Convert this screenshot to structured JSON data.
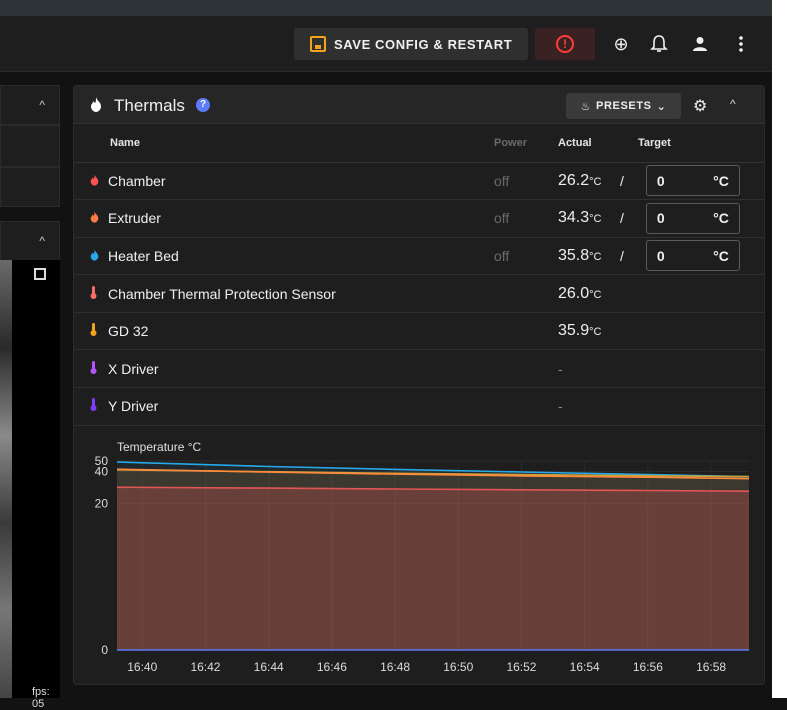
{
  "appbar": {
    "save_label": "SAVE CONFIG & RESTART",
    "icons": [
      "emergency-stop-icon",
      "upload-icon",
      "bell-icon",
      "account-icon",
      "more-vert-icon"
    ]
  },
  "camera": {
    "fps_label": "fps: 05"
  },
  "thermals": {
    "title": "Thermals",
    "presets_label": "PRESETS",
    "columns": {
      "name": "Name",
      "power": "Power",
      "actual": "Actual",
      "target": "Target"
    },
    "rows": [
      {
        "name": "Chamber",
        "icon": "flame-icon",
        "icon_color": "#ff5252",
        "power": "off",
        "actual": "26.2",
        "actual_unit": "°C",
        "slash": "/",
        "target": "0",
        "target_unit": "°C"
      },
      {
        "name": "Extruder",
        "icon": "flame-icon",
        "icon_color": "#ff7a45",
        "power": "off",
        "actual": "34.3",
        "actual_unit": "°C",
        "slash": "/",
        "target": "0",
        "target_unit": "°C"
      },
      {
        "name": "Heater Bed",
        "icon": "flame-icon",
        "icon_color": "#29a8e8",
        "power": "off",
        "actual": "35.8",
        "actual_unit": "°C",
        "slash": "/",
        "target": "0",
        "target_unit": "°C"
      },
      {
        "name": "Chamber Thermal Protection Sensor",
        "icon": "thermometer-icon",
        "icon_color": "#ff6b6b",
        "power": "",
        "actual": "26.0",
        "actual_unit": "°C"
      },
      {
        "name": "GD 32",
        "icon": "thermometer-icon",
        "icon_color": "#f5a31a",
        "power": "",
        "actual": "35.9",
        "actual_unit": "°C"
      },
      {
        "name": "X Driver",
        "icon": "thermometer-icon",
        "icon_color": "#b455ff",
        "power": "",
        "actual": "-",
        "actual_unit": ""
      },
      {
        "name": "Y Driver",
        "icon": "thermometer-icon",
        "icon_color": "#7d3cff",
        "power": "",
        "actual": "-",
        "actual_unit": ""
      }
    ]
  },
  "chart_data": {
    "type": "line",
    "title": "Temperature °C",
    "xlabel": "",
    "ylabel": "",
    "x_ticks": [
      "16:40",
      "16:42",
      "16:44",
      "16:46",
      "16:48",
      "16:50",
      "16:52",
      "16:54",
      "16:56",
      "16:58"
    ],
    "y_ticks": [
      0,
      20,
      40,
      50
    ],
    "ylim": [
      0,
      50
    ],
    "scale": "log1p",
    "series": [
      {
        "color": "#29a8e8",
        "x": [
          "16:39.2",
          "16:44",
          "16:48",
          "16:52",
          "16:56",
          "16:59.2"
        ],
        "values": [
          49,
          44.5,
          41.8,
          39.6,
          37.5,
          35.8
        ]
      },
      {
        "color": "#c8a23a",
        "x": [
          "16:39.2",
          "16:44",
          "16:48",
          "16:52",
          "16:56",
          "16:59.2"
        ],
        "values": [
          41.5,
          39.8,
          38.5,
          37.4,
          36.5,
          35.9
        ]
      },
      {
        "color": "#ff8a3d",
        "x": [
          "16:39.2",
          "16:44",
          "16:48",
          "16:52",
          "16:56",
          "16:59.2"
        ],
        "values": [
          42.0,
          39.5,
          37.8,
          36.4,
          35.4,
          34.3
        ]
      },
      {
        "color": "#e25555",
        "x": [
          "16:39.2",
          "16:44",
          "16:48",
          "16:52",
          "16:56",
          "16:59.2"
        ],
        "values": [
          28.6,
          28.0,
          27.5,
          27.0,
          26.6,
          26.2
        ]
      },
      {
        "color": "#5c7cfa",
        "x": [
          "16:39.2",
          "16:59.2"
        ],
        "values": [
          0,
          0
        ]
      }
    ]
  }
}
